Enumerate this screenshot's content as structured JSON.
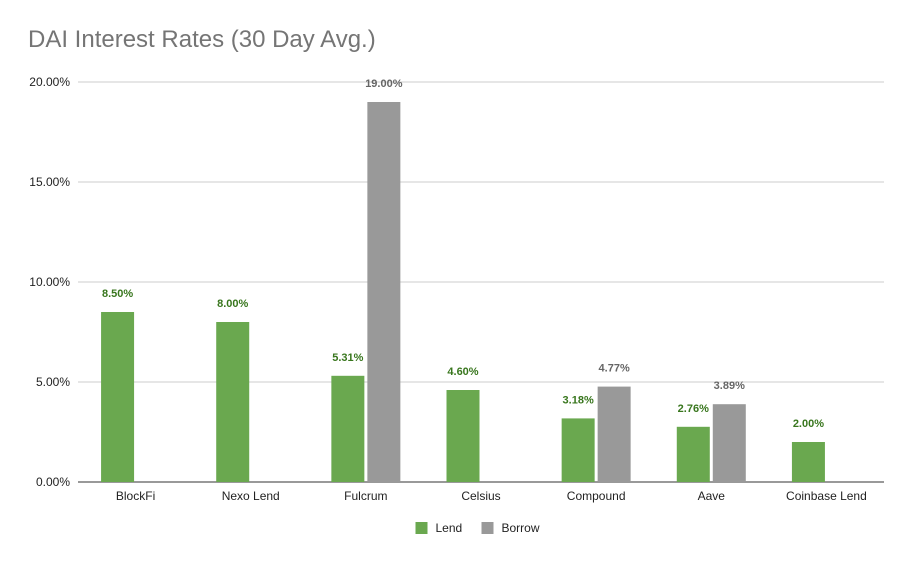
{
  "chart_data": {
    "type": "bar",
    "title": "DAI Interest Rates (30 Day Avg.)",
    "categories": [
      "BlockFi",
      "Nexo Lend",
      "Fulcrum",
      "Celsius",
      "Compound",
      "Aave",
      "Coinbase Lend"
    ],
    "series": [
      {
        "name": "Lend",
        "color": "#6aa84f",
        "values": [
          8.5,
          8.0,
          5.31,
          4.6,
          3.18,
          2.76,
          2.0
        ],
        "labels": [
          "8.50%",
          "8.00%",
          "5.31%",
          "4.60%",
          "3.18%",
          "2.76%",
          "2.00%"
        ]
      },
      {
        "name": "Borrow",
        "color": "#999999",
        "values": [
          null,
          null,
          19.0,
          null,
          4.77,
          3.89,
          null
        ],
        "labels": [
          null,
          null,
          "19.00%",
          null,
          "4.77%",
          "3.89%",
          null
        ]
      }
    ],
    "ylim": [
      0,
      20
    ],
    "yticks": [
      0,
      5,
      10,
      15,
      20
    ],
    "ytick_labels": [
      "0.00%",
      "5.00%",
      "10.00%",
      "15.00%",
      "20.00%"
    ],
    "xlabel": "",
    "ylabel": "",
    "grid": true,
    "legend_position": "bottom",
    "label_colors": {
      "Lend": "#38761d",
      "Borrow": "#666666"
    }
  }
}
